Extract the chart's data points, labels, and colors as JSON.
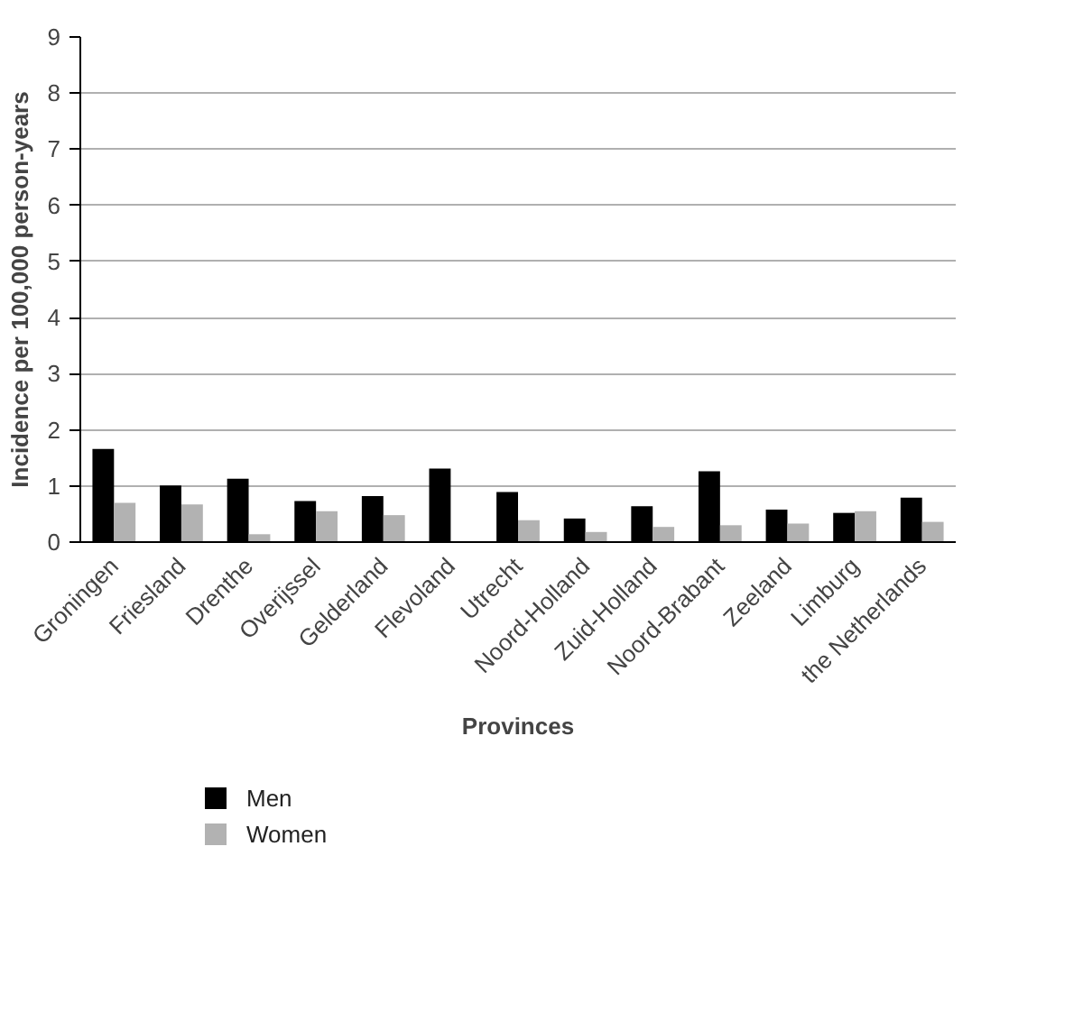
{
  "chart_data": {
    "type": "bar",
    "xlabel": "Provinces",
    "ylabel": "Incidence per 100,000 person-years",
    "categories": [
      "Groningen",
      "Friesland",
      "Drenthe",
      "Overijssel",
      "Gelderland",
      "Flevoland",
      "Utrecht",
      "Noord-Holland",
      "Zuid-Holland",
      "Noord-Brabant",
      "Zeeland",
      "Limburg",
      "the Netherlands"
    ],
    "series": [
      {
        "name": "Men",
        "color": "#000000",
        "values": [
          1.66,
          1.01,
          1.13,
          0.73,
          0.82,
          1.31,
          0.89,
          0.42,
          0.64,
          1.26,
          0.58,
          0.52,
          0.79
        ]
      },
      {
        "name": "Women",
        "color": "#b2b2b2",
        "values": [
          0.7,
          0.67,
          0.14,
          0.55,
          0.48,
          0,
          0.39,
          0.18,
          0.27,
          0.3,
          0.33,
          0.55,
          0.36
        ]
      }
    ],
    "ylim": [
      0,
      9
    ],
    "yticks": [
      0,
      1,
      2,
      3,
      4,
      5,
      6,
      7,
      8,
      9
    ],
    "grid": "y",
    "legend": "bottom"
  }
}
